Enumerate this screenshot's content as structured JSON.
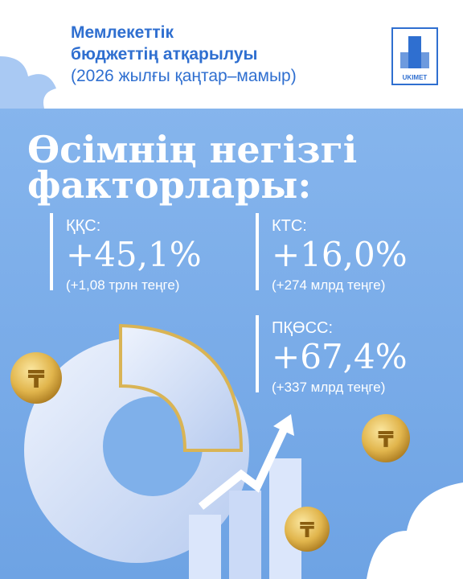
{
  "header": {
    "title_lines": [
      "Мемлекеттік",
      "бюджеттің атқарылуы",
      "(2026 жылғы қаңтар–мамыр)"
    ],
    "logo_text": "UKIMET"
  },
  "heading_lines": [
    "Өсімнің негізгі",
    "факторлары:"
  ],
  "stats": [
    {
      "label": "ҚҚС:",
      "value": "+45,1%",
      "note": "(+1,08 трлн теңге)"
    },
    {
      "label": "КТС:",
      "value": "+16,0%",
      "note": "(+274 млрд теңге)"
    },
    {
      "label": "ПҚӨСС:",
      "value": "+67,4%",
      "note": "(+337 млрд теңге)"
    }
  ]
}
